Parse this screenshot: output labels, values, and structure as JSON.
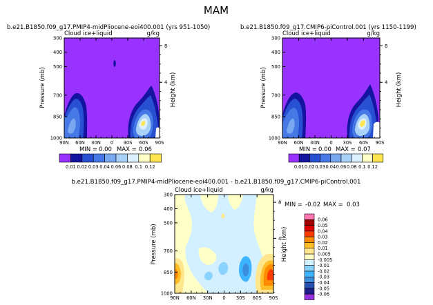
{
  "page_title": "MAM",
  "chart_data": [
    {
      "type": "heatmap",
      "title": "b.e21.B1850.f09_g17.PMIP4-midPliocene-eoi400.001 (yrs 951-1050)",
      "field_label": "Cloud ice+liquid",
      "units": "g/kg",
      "ylabel": "Pressure (mb)",
      "ylabel_right": "Height (km)",
      "x_ticks": [
        "90N",
        "60N",
        "30N",
        "0",
        "30S",
        "60S",
        "90S"
      ],
      "y_ticks": [
        "300",
        "400",
        "500",
        "700",
        "850",
        "1000"
      ],
      "height_ticks": [
        "8",
        "4"
      ],
      "min_label": "MIN =",
      "min_value": "0.00",
      "max_label": "MAX =",
      "max_value": "0.06",
      "levels": [
        "0.01",
        "0.02",
        "0.03",
        "0.04",
        "0.06",
        "0.08",
        "0.1",
        "0.12"
      ]
    },
    {
      "type": "heatmap",
      "title": "b.e21.B1850.f09_g17.CMIP6-piControl.001 (yrs 1150-1199)",
      "field_label": "Cloud ice+liquid",
      "units": "g/kg",
      "ylabel": "Pressure (mb)",
      "ylabel_right": "Height (km)",
      "x_ticks": [
        "90N",
        "60N",
        "30N",
        "0",
        "30S",
        "60S",
        "90S"
      ],
      "y_ticks": [
        "300",
        "400",
        "500",
        "700",
        "850",
        "1000"
      ],
      "height_ticks": [
        "8",
        "4"
      ],
      "min_label": "MIN =",
      "min_value": "0.00",
      "max_label": "MAX =",
      "max_value": "0.07",
      "levels": [
        "0.01",
        "0.02",
        "0.03",
        "0.04",
        "0.06",
        "0.08",
        "0.1",
        "0.12"
      ]
    },
    {
      "type": "heatmap",
      "title": "b.e21.B1850.f09_g17.PMIP4-midPliocene-eoi400.001 - b.e21.B1850.f09_g17.CMIP6-piControl.001",
      "field_label": "Cloud ice+liquid",
      "units": "g/kg",
      "ylabel": "Pressure (mb)",
      "ylabel_right": "Height (km)",
      "x_ticks": [
        "90N",
        "60N",
        "30N",
        "0",
        "30S",
        "60S",
        "90S"
      ],
      "y_ticks": [
        "300",
        "400",
        "500",
        "700",
        "850",
        "1000"
      ],
      "height_ticks": [
        "8",
        "4"
      ],
      "min_label": "MIN =",
      "min_value": "-0.02",
      "max_label": "MAX =",
      "max_value": "0.03",
      "levels": [
        "0.06",
        "0.05",
        "0.04",
        "0.03",
        "0.02",
        "0.01",
        "0.005",
        "-0.005",
        "-0.01",
        "-0.02",
        "-0.03",
        "-0.04",
        "-0.05",
        "-0.06"
      ]
    }
  ],
  "colors": {
    "abs_palette": [
      "#9a32ff",
      "#1414a0",
      "#2850d2",
      "#4678e6",
      "#7aa8f0",
      "#aad2f8",
      "#dcf0ff",
      "#ffffc8",
      "#ffe650",
      "#ffb400",
      "#ff7800",
      "#e61e00",
      "#aa0000",
      "#ff78c8"
    ],
    "diff_palette": [
      "#ff78b4",
      "#a00000",
      "#dc0000",
      "#ff3c00",
      "#ff8c00",
      "#ffbe28",
      "#ffe68c",
      "#ffffc8",
      "#d2f0ff",
      "#8cd2ff",
      "#3cb4ff",
      "#3c8cdc",
      "#2850b4",
      "#1e1e8c",
      "#9632dc"
    ]
  }
}
